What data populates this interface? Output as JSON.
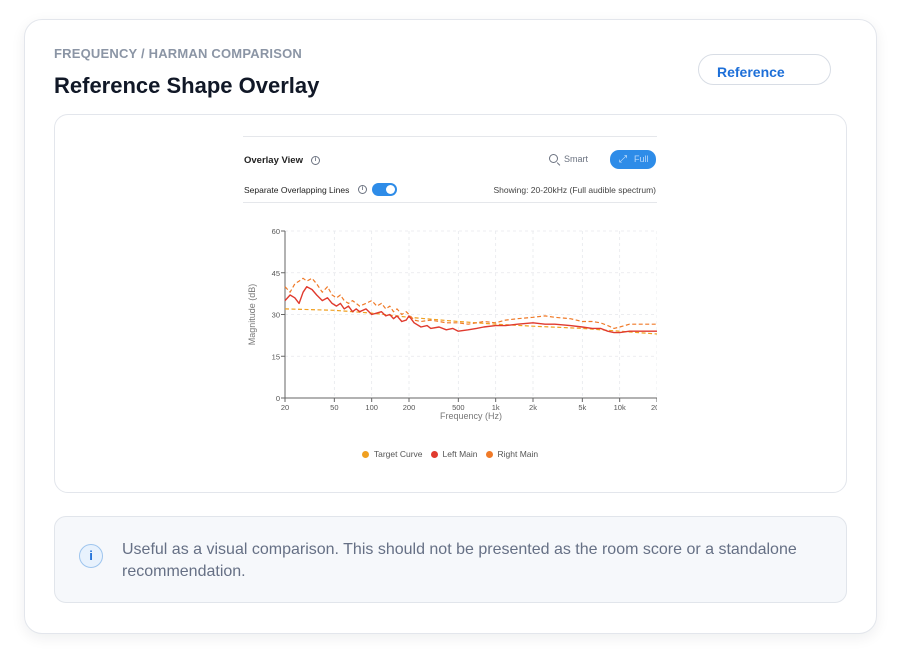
{
  "header": {
    "eyebrow": "FREQUENCY / HARMAN COMPARISON",
    "title": "Reference Shape Overlay",
    "reference_button": "Reference"
  },
  "overlay": {
    "title": "Overlay View",
    "smart_label": "Smart",
    "full_label": "Full",
    "separate_label": "Separate Overlapping Lines",
    "separate_enabled": true,
    "showing": "Showing: 20-20kHz (Full audible spectrum)"
  },
  "colors": {
    "accent": "#2e8ce8",
    "target": "#f0a020",
    "left": "#e03a2e",
    "right": "#f07a28"
  },
  "chart_data": {
    "type": "line",
    "xlabel": "Frequency (Hz)",
    "ylabel": "Magnitude (dB)",
    "x_scale": "log",
    "xlim": [
      20,
      20000
    ],
    "ylim": [
      0,
      60
    ],
    "x_ticks": [
      20,
      50,
      100,
      200,
      500,
      1000,
      2000,
      5000,
      10000,
      20000
    ],
    "x_tick_labels": [
      "20",
      "50",
      "100",
      "200",
      "500",
      "1k",
      "2k",
      "5k",
      "10k",
      "20k"
    ],
    "y_ticks": [
      0,
      15,
      30,
      45,
      60
    ],
    "y_tick_labels": [
      "0",
      "15",
      "30",
      "45",
      "60"
    ],
    "grid": true,
    "legend_position": "bottom",
    "series": [
      {
        "name": "Target Curve",
        "color": "#f0a020",
        "dash": true,
        "x": [
          20,
          50,
          100,
          200,
          500,
          1000,
          2000,
          5000,
          10000,
          20000
        ],
        "y": [
          32,
          31.5,
          30.5,
          29,
          27.5,
          26.5,
          25.8,
          25,
          24,
          23
        ]
      },
      {
        "name": "Left Main",
        "color": "#e03a2e",
        "dash": false,
        "x": [
          20,
          22,
          24,
          26,
          28,
          30,
          33,
          36,
          40,
          44,
          48,
          52,
          56,
          60,
          65,
          70,
          75,
          80,
          90,
          100,
          110,
          120,
          130,
          140,
          150,
          160,
          175,
          190,
          200,
          220,
          250,
          280,
          300,
          350,
          400,
          450,
          500,
          600,
          700,
          800,
          1000,
          1200,
          1500,
          2000,
          2500,
          3000,
          4000,
          5000,
          6000,
          7000,
          8000,
          9000,
          10000,
          12000,
          15000,
          20000
        ],
        "y": [
          35,
          37,
          36,
          34,
          38,
          40,
          39,
          37,
          35,
          36,
          34,
          33,
          34,
          32,
          33,
          31,
          32,
          31,
          32,
          30,
          30.5,
          31,
          29.5,
          30,
          28.5,
          29.5,
          27.5,
          28,
          29.5,
          27,
          25.5,
          26,
          25,
          25.5,
          24.5,
          25,
          24,
          24.5,
          25,
          25.5,
          26,
          26,
          26.5,
          27,
          26.5,
          26.5,
          26,
          25.5,
          25,
          25,
          24,
          23.5,
          23.5,
          24,
          24,
          24
        ]
      },
      {
        "name": "Right Main",
        "color": "#f07a28",
        "dash": true,
        "x": [
          20,
          22,
          24,
          26,
          28,
          30,
          33,
          36,
          40,
          44,
          48,
          52,
          56,
          60,
          65,
          70,
          80,
          90,
          100,
          110,
          120,
          130,
          140,
          150,
          160,
          175,
          190,
          200,
          220,
          250,
          300,
          350,
          400,
          500,
          600,
          700,
          800,
          1000,
          1200,
          1500,
          2000,
          2500,
          3000,
          4000,
          5000,
          6000,
          7000,
          8000,
          9000,
          10000,
          12000,
          15000,
          20000
        ],
        "y": [
          40,
          38,
          41,
          42,
          43,
          42,
          43,
          41,
          38,
          40,
          37,
          36,
          37,
          35,
          34,
          35,
          33,
          34,
          35,
          33,
          34,
          32,
          33,
          31,
          32,
          30,
          31,
          30,
          28,
          27.5,
          28,
          27.5,
          27,
          27,
          26.5,
          27,
          27.5,
          27,
          28,
          28.5,
          29,
          29.5,
          29,
          28.5,
          27.5,
          27.5,
          27,
          26,
          25,
          25.5,
          26.5,
          26.5,
          26.5
        ]
      }
    ]
  },
  "note": {
    "icon": "info-icon",
    "text": "Useful as a visual comparison. This should not be presented as the room score or a standalone recommendation."
  }
}
